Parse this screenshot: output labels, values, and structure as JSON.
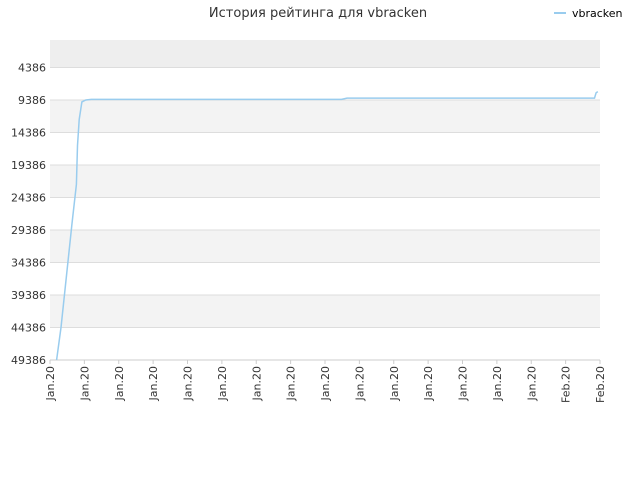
{
  "chart_data": {
    "type": "line",
    "title": "История рейтинга для vbracken",
    "legend": {
      "position": "top-right",
      "entries": [
        "vbracken"
      ]
    },
    "y_reversed": true,
    "ylim": [
      49386,
      0
    ],
    "yticks": [
      "4386",
      "9386",
      "14386",
      "19386",
      "24386",
      "29386",
      "34386",
      "39386",
      "44386",
      "49386"
    ],
    "xticks": [
      "Jan.20",
      "Jan.20",
      "Jan.20",
      "Jan.20",
      "Jan.20",
      "Jan.20",
      "Jan.20",
      "Jan.20",
      "Jan.20",
      "Jan.20",
      "Jan.20",
      "Jan.20",
      "Jan.20",
      "Jan.20",
      "Jan.20",
      "Feb.20",
      "Feb.20"
    ],
    "grid": true,
    "series": [
      {
        "name": "vbracken",
        "color": "#99ccee",
        "x": [
          0.012,
          0.02,
          0.03,
          0.04,
          0.048,
          0.05,
          0.053,
          0.058,
          0.065,
          0.075,
          0.1,
          0.3,
          0.53,
          0.54,
          0.6,
          0.8,
          0.99,
          0.993,
          0.996
        ],
        "y": [
          49386,
          44386,
          36386,
          28386,
          22386,
          16386,
          12386,
          9686,
          9386,
          9286,
          9286,
          9286,
          9286,
          9086,
          9086,
          9086,
          9086,
          8286,
          8086
        ]
      }
    ]
  }
}
